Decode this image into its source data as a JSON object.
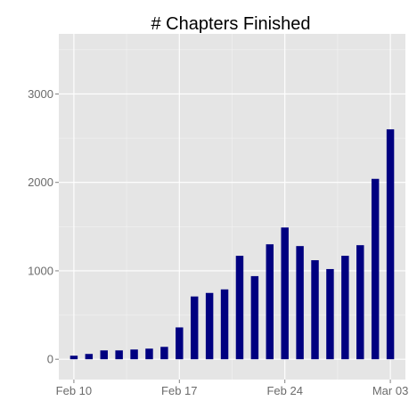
{
  "chart_data": {
    "type": "bar",
    "title": "# Chapters Finished",
    "xlabel": "",
    "ylabel": "",
    "x": [
      "2014-02-10",
      "2014-02-11",
      "2014-02-12",
      "2014-02-13",
      "2014-02-14",
      "2014-02-15",
      "2014-02-16",
      "2014-02-17",
      "2014-02-18",
      "2014-02-19",
      "2014-02-20",
      "2014-02-21",
      "2014-02-22",
      "2014-02-23",
      "2014-02-24",
      "2014-02-25",
      "2014-02-26",
      "2014-02-27",
      "2014-02-28",
      "2014-03-01",
      "2014-03-02",
      "2014-03-03"
    ],
    "values": [
      40,
      60,
      100,
      100,
      110,
      120,
      140,
      360,
      710,
      750,
      790,
      1170,
      940,
      1300,
      1490,
      1280,
      1120,
      1020,
      1170,
      1290,
      2040,
      2600
    ],
    "xticks": [
      {
        "label": "Feb 10",
        "x": "2014-02-10"
      },
      {
        "label": "Feb 17",
        "x": "2014-02-17"
      },
      {
        "label": "Feb 24",
        "x": "2014-02-24"
      },
      {
        "label": "Mar 03",
        "x": "2014-03-03"
      }
    ],
    "yticks": [
      0,
      1000,
      2000,
      3000
    ],
    "ylim": [
      -230,
      3680
    ],
    "xlim": [
      "2014-02-09",
      "2014-03-04"
    ],
    "grid": true,
    "colors": {
      "bar": "#000080",
      "panel": "#e5e5e5",
      "grid_major": "#ffffff",
      "grid_minor": "#f2f2f2",
      "tick_label": "#6b6b6b"
    }
  }
}
